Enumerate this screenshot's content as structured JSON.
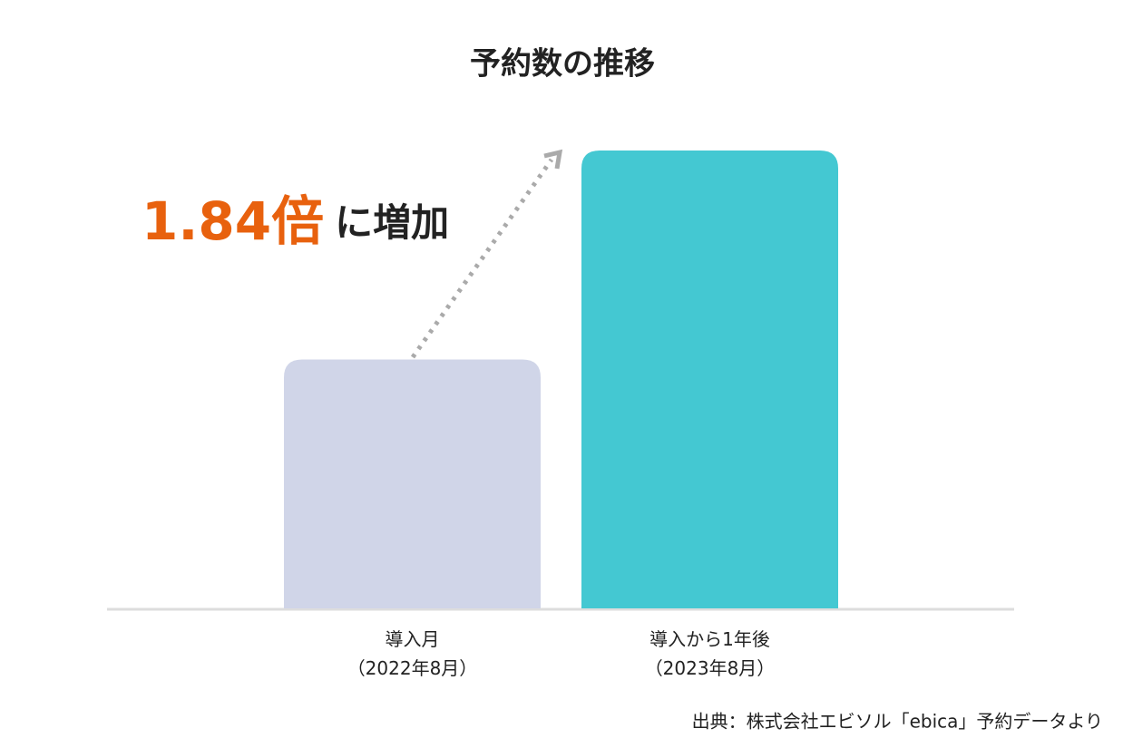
{
  "chart_data": {
    "type": "bar",
    "title": "予約数の推移",
    "categories": [
      [
        "導入月",
        "（2022年8月）"
      ],
      [
        "導入から1年後",
        "（2023年8月）"
      ]
    ],
    "values": [
      1,
      1.84
    ],
    "colors": [
      "#d0d5e8",
      "#44c8d2"
    ],
    "annotation": {
      "highlight": "1.84倍",
      "text": "に増加"
    },
    "source": "出典：株式会社エビソル「ebica」予約データより"
  }
}
